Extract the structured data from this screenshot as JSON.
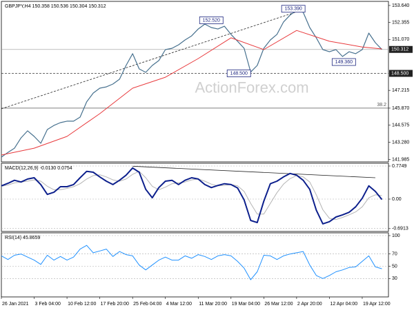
{
  "chart_data": [
    {
      "type": "line",
      "title": "GBPJPY,H4  150.358 150.536 150.304 150.312",
      "watermark": "ActionForex.com",
      "xlim": [
        0,
        59
      ],
      "ylim": [
        141.8,
        153.95
      ],
      "grid": false,
      "x": [
        0,
        1,
        2,
        3,
        4,
        5,
        6,
        7,
        8,
        9,
        10,
        11,
        12,
        13,
        14,
        15,
        16,
        17,
        18,
        19,
        20,
        21,
        22,
        23,
        24,
        25,
        26,
        27,
        28,
        29,
        30,
        31,
        32,
        33,
        34,
        35,
        36,
        37,
        38,
        39,
        40,
        41,
        42,
        43,
        44,
        45,
        46,
        47,
        48,
        49,
        50,
        51,
        52,
        53,
        54,
        55,
        56,
        57,
        58
      ],
      "yticks": [
        {
          "value": 153.64,
          "label": "153.640"
        },
        {
          "value": 152.355,
          "label": "152.355"
        },
        {
          "value": 151.07,
          "label": "151.070"
        },
        {
          "value": 147.215,
          "label": "147.215"
        },
        {
          "value": 145.87,
          "label": "145.870"
        },
        {
          "value": 144.575,
          "label": "144.575"
        },
        {
          "value": 143.28,
          "label": "143.280"
        },
        {
          "value": 141.985,
          "label": "141.985"
        }
      ],
      "series": [
        {
          "color": "#46708e",
          "line_width": 1.2,
          "values": [
            142.16,
            142.52,
            142.84,
            143.62,
            144.15,
            143.73,
            143.21,
            144.25,
            144.56,
            144.77,
            144.88,
            144.88,
            145.19,
            146.34,
            147.01,
            147.38,
            147.48,
            147.69,
            148.06,
            149.1,
            149.99,
            148.84,
            148.58,
            149.1,
            149.47,
            150.3,
            150.4,
            150.66,
            151.03,
            151.34,
            151.86,
            152.23,
            151.97,
            151.86,
            152.07,
            151.45,
            150.93,
            150.4,
            148.6,
            149.1,
            150.4,
            151.03,
            151.45,
            152.39,
            152.91,
            153.27,
            153.12,
            151.97,
            151.19,
            150.3,
            150.14,
            150.3,
            149.78,
            150.14,
            149.99,
            150.3,
            151.55,
            150.82,
            150.31
          ]
        },
        {
          "color": "#e8383b",
          "line_width": 1,
          "x": [
            0,
            5,
            10,
            15,
            20,
            25,
            30,
            35,
            40,
            45,
            50,
            55,
            58
          ],
          "values": [
            142.32,
            142.84,
            143.73,
            145.45,
            147.38,
            148.21,
            149.62,
            151.19,
            150.3,
            151.75,
            150.93,
            150.5,
            150.35
          ]
        }
      ],
      "levels": [
        {
          "value": 148.5,
          "label": "148.500",
          "dash": true
        },
        {
          "value": 145.87,
          "fib": 38.2
        }
      ],
      "price_line": {
        "value": 150.312,
        "label": "150.312"
      },
      "trendlines": [
        {
          "x": [
            0,
            46
          ],
          "values": [
            145.82,
            153.32
          ]
        }
      ],
      "annotations": [
        {
          "x": 32,
          "value": 152.52,
          "label": "152.520"
        },
        {
          "x": 44.5,
          "value": 153.39,
          "label": "153.390"
        },
        {
          "x": 36.2,
          "value": 148.5,
          "label": "148.500"
        },
        {
          "x": 52.2,
          "value": 149.36,
          "label": "149.360"
        }
      ]
    },
    {
      "type": "line",
      "title": "MACD(12,26,9) -0.0130 0.0754",
      "xlim": [
        0,
        59
      ],
      "ylim": [
        -0.7587,
        0.8395
      ],
      "grid": true,
      "x": [
        0,
        1,
        2,
        3,
        4,
        5,
        6,
        7,
        8,
        9,
        10,
        11,
        12,
        13,
        14,
        15,
        16,
        17,
        18,
        19,
        20,
        21,
        22,
        23,
        24,
        25,
        26,
        27,
        28,
        29,
        30,
        31,
        32,
        33,
        34,
        35,
        36,
        37,
        38,
        39,
        40,
        41,
        42,
        43,
        44,
        45,
        46,
        47,
        48,
        49,
        50,
        51,
        52,
        53,
        54,
        55,
        56,
        57,
        58
      ],
      "yticks": [
        0.7749,
        {
          "value": 0,
          "label": "0.00"
        },
        -0.6913
      ],
      "series": [
        {
          "color": "#b4b4b4",
          "line_width": 1,
          "values": [
            0.3,
            0.33,
            0.38,
            0.4,
            0.42,
            0.45,
            0.42,
            0.3,
            0.22,
            0.22,
            0.25,
            0.29,
            0.36,
            0.47,
            0.55,
            0.57,
            0.52,
            0.45,
            0.42,
            0.47,
            0.58,
            0.65,
            0.5,
            0.3,
            0.22,
            0.28,
            0.36,
            0.38,
            0.4,
            0.45,
            0.47,
            0.42,
            0.35,
            0.31,
            0.32,
            0.34,
            0.31,
            0.18,
            -0.1,
            -0.35,
            -0.35,
            -0.1,
            0.15,
            0.35,
            0.48,
            0.55,
            0.52,
            0.4,
            0.1,
            -0.25,
            -0.45,
            -0.48,
            -0.43,
            -0.37,
            -0.3,
            -0.18,
            0.03,
            0.1,
            0.08
          ]
        },
        {
          "color": "#0c1f8c",
          "line_width": 2,
          "values": [
            0.31,
            0.37,
            0.44,
            0.4,
            0.47,
            0.5,
            0.34,
            0.11,
            0.16,
            0.29,
            0.29,
            0.34,
            0.5,
            0.65,
            0.63,
            0.52,
            0.42,
            0.34,
            0.44,
            0.56,
            0.73,
            0.63,
            0.23,
            0.03,
            0.27,
            0.42,
            0.44,
            0.34,
            0.44,
            0.5,
            0.47,
            0.34,
            0.27,
            0.32,
            0.36,
            0.34,
            0.26,
            -0.02,
            -0.5,
            -0.55,
            -0.05,
            0.36,
            0.42,
            0.52,
            0.6,
            0.56,
            0.44,
            0.23,
            -0.26,
            -0.58,
            -0.53,
            -0.42,
            -0.37,
            -0.31,
            -0.18,
            0.02,
            0.31,
            0.18,
            -0.01
          ]
        }
      ],
      "trendlines": [
        {
          "x": [
            20,
            57
          ],
          "values": [
            0.77,
            0.5
          ]
        }
      ]
    },
    {
      "type": "line",
      "title": "RSI(14) 45.8659",
      "xlim": [
        0,
        59
      ],
      "ylim": [
        0,
        104.5
      ],
      "grid": true,
      "x": [
        0,
        1,
        2,
        3,
        4,
        5,
        6,
        7,
        8,
        9,
        10,
        11,
        12,
        13,
        14,
        15,
        16,
        17,
        18,
        19,
        20,
        21,
        22,
        23,
        24,
        25,
        26,
        27,
        28,
        29,
        30,
        31,
        32,
        33,
        34,
        35,
        36,
        37,
        38,
        39,
        40,
        41,
        42,
        43,
        44,
        45,
        46,
        47,
        48,
        49,
        50,
        51,
        52,
        53,
        54,
        55,
        56,
        57,
        58
      ],
      "yticks": [
        100,
        70,
        50,
        30
      ],
      "xticks": [
        {
          "value": 0,
          "label": "26 Jan 2021"
        },
        {
          "value": 5,
          "label": "3 Feb 04:00"
        },
        {
          "value": 10,
          "label": "10 Feb 12:00"
        },
        {
          "value": 15,
          "label": "17 Feb 20:00"
        },
        {
          "value": 20,
          "label": "25 Feb 04:00"
        },
        {
          "value": 25,
          "label": "4 Mar 12:00"
        },
        {
          "value": 30,
          "label": "11 Mar 20:00"
        },
        {
          "value": 35,
          "label": "19 Mar 04:00"
        },
        {
          "value": 40,
          "label": "26 Mar 12:00"
        },
        {
          "value": 45,
          "label": "2 Apr 20:00"
        },
        {
          "value": 50,
          "label": "12 Apr 04:00"
        },
        {
          "value": 55,
          "label": "19 Apr 12:00"
        }
      ],
      "series": [
        {
          "color": "#1e90ff",
          "line_width": 1,
          "values": [
            67,
            61,
            68,
            70,
            65,
            60,
            53,
            68,
            60,
            66,
            60,
            65,
            78,
            84,
            72,
            75,
            78,
            66,
            74,
            69,
            67,
            52,
            44,
            52,
            60,
            65,
            60,
            60,
            67,
            63,
            69,
            66,
            61,
            67,
            69,
            67,
            58,
            47,
            28,
            41,
            68,
            67,
            61,
            67,
            70,
            72,
            74,
            52,
            35,
            30,
            35,
            41,
            44,
            48,
            49,
            58,
            67,
            49,
            46
          ]
        }
      ]
    }
  ]
}
